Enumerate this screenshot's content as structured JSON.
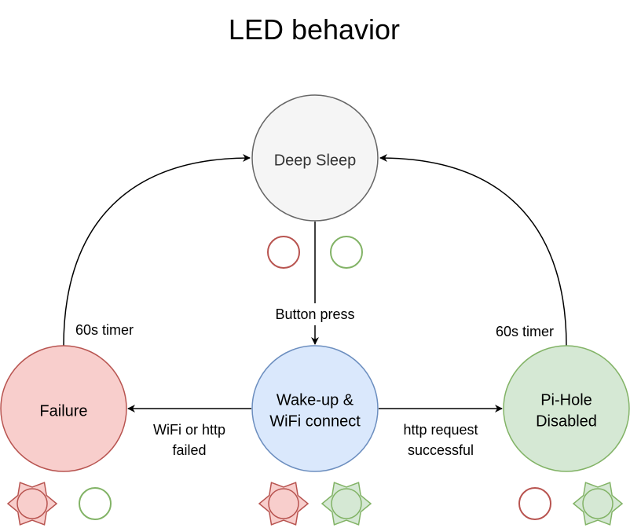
{
  "title": "LED behavior",
  "colors": {
    "red_stroke": "#b85450",
    "red_fill": "#f8cecc",
    "green_stroke": "#82b366",
    "green_fill": "#d5e8d4",
    "blue_stroke": "#6c8ebf",
    "blue_fill": "#dae8fc",
    "grey_stroke": "#666666",
    "grey_fill": "#f5f5f5"
  },
  "nodes": {
    "deep_sleep": {
      "label": "Deep Sleep"
    },
    "wakeup": {
      "line1": "Wake-up &",
      "line2": "WiFi connect"
    },
    "failure": {
      "label": "Failure"
    },
    "pihole": {
      "line1": "Pi-Hole",
      "line2": "Disabled"
    }
  },
  "edges": {
    "button_press": "Button press",
    "failure_timer": "60s timer",
    "pihole_timer": "60s timer",
    "wifi_failed": {
      "line1": "WiFi or http",
      "line2": "failed"
    },
    "http_success": {
      "line1": "http request",
      "line2": "successful"
    }
  },
  "leds": {
    "deep_sleep": {
      "red": "off",
      "green": "off"
    },
    "wakeup": {
      "red": "blinking",
      "green": "blinking"
    },
    "failure": {
      "red": "blinking",
      "green": "off"
    },
    "pihole": {
      "red": "off",
      "green": "blinking"
    }
  }
}
